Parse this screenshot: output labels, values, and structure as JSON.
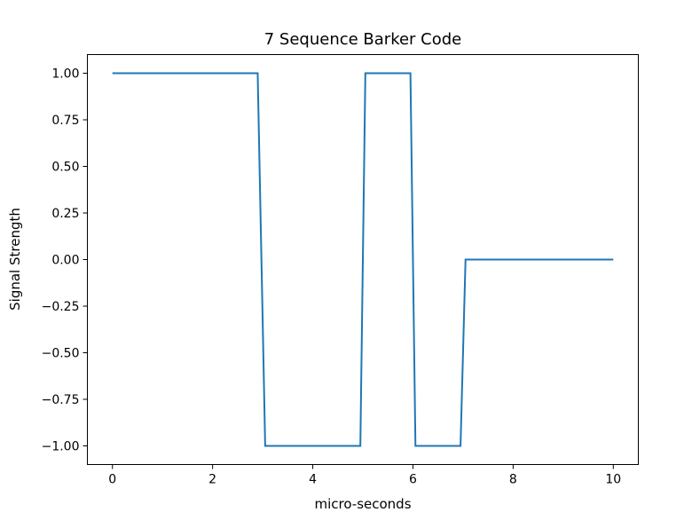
{
  "chart_data": {
    "type": "line",
    "title": "7 Sequence Barker Code",
    "xlabel": "micro-seconds",
    "ylabel": "Signal Strength",
    "xlim": [
      -0.5,
      10.5
    ],
    "ylim": [
      -1.1,
      1.1
    ],
    "grid": false,
    "x_ticks": [
      0,
      2,
      4,
      6,
      8,
      10
    ],
    "x_tick_labels": [
      "0",
      "2",
      "4",
      "6",
      "8",
      "10"
    ],
    "y_ticks": [
      1.0,
      0.75,
      0.5,
      0.25,
      0.0,
      -0.25,
      -0.5,
      -0.75,
      -1.0
    ],
    "y_tick_labels": [
      "1.00",
      "0.75",
      "0.50",
      "0.25",
      "0.00",
      "−0.25",
      "−0.50",
      "−0.75",
      "−1.00"
    ],
    "series": [
      {
        "color": "#1f77b4",
        "x": [
          0,
          2.9,
          3.05,
          4.95,
          5.05,
          5.95,
          6.05,
          6.95,
          7.05,
          10
        ],
        "y": [
          1,
          1,
          -1,
          -1,
          1,
          1,
          -1,
          -1,
          0,
          0
        ]
      }
    ]
  }
}
